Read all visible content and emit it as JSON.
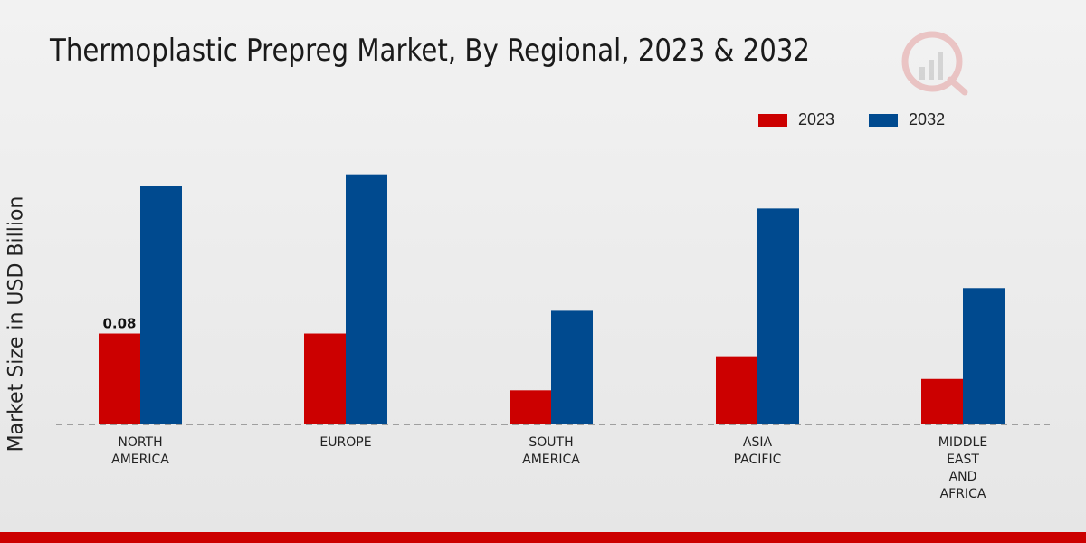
{
  "colors": {
    "series_2023": "#cc0000",
    "series_2032": "#004a8f",
    "footer": "#cc0000"
  },
  "chart_data": {
    "type": "bar",
    "title": "Thermoplastic Prepreg Market, By Regional, 2023 & 2032",
    "xlabel": "",
    "ylabel": "Market Size in USD Billion",
    "ylim": [
      0,
      0.25
    ],
    "categories": [
      [
        "NORTH",
        "AMERICA"
      ],
      [
        "EUROPE"
      ],
      [
        "SOUTH",
        "AMERICA"
      ],
      [
        "ASIA",
        "PACIFIC"
      ],
      [
        "MIDDLE",
        "EAST",
        "AND",
        "AFRICA"
      ]
    ],
    "series": [
      {
        "name": "2023",
        "values": [
          0.08,
          0.08,
          0.03,
          0.06,
          0.04
        ]
      },
      {
        "name": "2032",
        "values": [
          0.21,
          0.22,
          0.1,
          0.19,
          0.12
        ]
      }
    ],
    "data_labels": [
      {
        "series": 0,
        "index": 0,
        "text": "0.08"
      }
    ],
    "legend_position": "top-right",
    "grid": false
  }
}
